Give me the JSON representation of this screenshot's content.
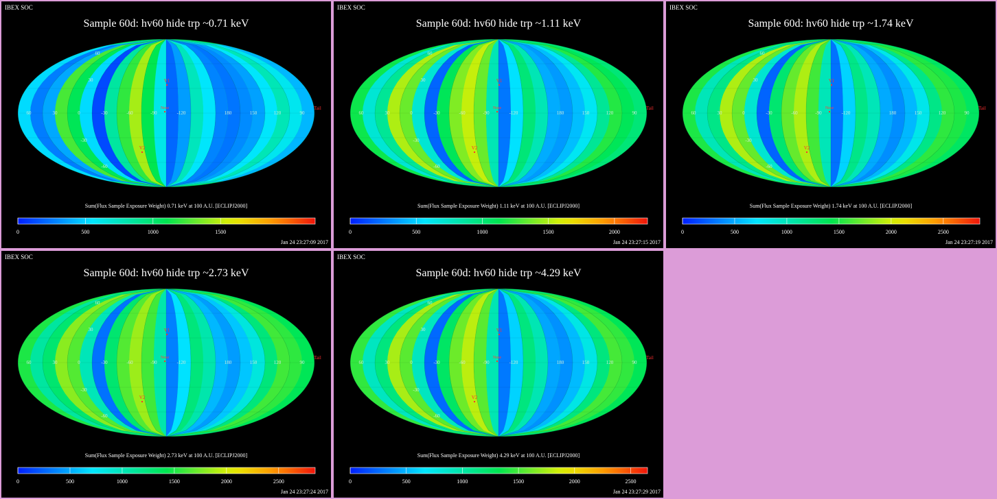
{
  "colors": {
    "background": "#dc9cd8",
    "panel": "#000000",
    "text": "#ffffff",
    "marker": "#ff3030"
  },
  "chart_data": [
    {
      "type": "heatmap",
      "projection": "mollweide",
      "corner_label": "IBEX SOC",
      "title": "Sample 60d: hv60 hide trp ~0.71 keV",
      "colorbar_label": "Sum(Flux Sample Exposure Weight)  0.71 keV at 100 A.U. [ECLIPJ2000]",
      "colorbar_ticks": [
        0,
        500,
        1000,
        1500
      ],
      "colorbar_range": [
        0,
        2200
      ],
      "timestamp": "Jan 24 23:27:09 2017",
      "lon_labels": [
        "60",
        "30",
        "0",
        "-30",
        "-60",
        "-90",
        "-120",
        "180",
        "150",
        "120",
        "90"
      ],
      "lat_labels": [
        "60",
        "30",
        "-30",
        "-60"
      ],
      "markers": [
        "V1",
        "V2",
        "Nose",
        "Tail"
      ],
      "band_values": [
        520,
        260,
        380,
        1250,
        1080,
        520,
        120,
        850,
        1200,
        1450,
        1100,
        620,
        200,
        350,
        760,
        560,
        280,
        240,
        300,
        360,
        560,
        780,
        600,
        420
      ]
    },
    {
      "type": "heatmap",
      "projection": "mollweide",
      "corner_label": "IBEX SOC",
      "title": "Sample 60d: hv60 hide trp ~1.11 keV",
      "colorbar_label": "Sum(Flux Sample Exposure Weight)  1.11 keV at 100 A.U. [ECLIPJ2000]",
      "colorbar_ticks": [
        0,
        500,
        1000,
        1500,
        2000
      ],
      "colorbar_range": [
        0,
        2250
      ],
      "timestamp": "Jan 24 23:27:15 2017",
      "lon_labels": [
        "60",
        "30",
        "0",
        "-30",
        "-60",
        "-90",
        "-120",
        "180",
        "150",
        "120",
        "90"
      ],
      "lat_labels": [
        "60",
        "30",
        "-30",
        "-60"
      ],
      "markers": [
        "V1",
        "V2",
        "Nose",
        "Tail"
      ],
      "band_values": [
        1150,
        700,
        900,
        1500,
        1350,
        700,
        200,
        1100,
        1400,
        1550,
        1350,
        800,
        250,
        550,
        1000,
        800,
        400,
        350,
        450,
        600,
        900,
        1200,
        1100,
        1000
      ]
    },
    {
      "type": "heatmap",
      "projection": "mollweide",
      "corner_label": "IBEX SOC",
      "title": "Sample 60d: hv60 hide trp ~1.74 keV",
      "colorbar_label": "Sum(Flux Sample Exposure Weight)  1.74 keV at 100 A.U. [ECLIPJ2000]",
      "colorbar_ticks": [
        0,
        500,
        1000,
        1500,
        2000,
        2500
      ],
      "colorbar_range": [
        0,
        2850
      ],
      "timestamp": "Jan 24 23:27:19 2017",
      "lon_labels": [
        "60",
        "30",
        "0",
        "-30",
        "-60",
        "-90",
        "-120",
        "180",
        "150",
        "120",
        "90"
      ],
      "lat_labels": [
        "60",
        "30",
        "-30",
        "-60"
      ],
      "markers": [
        "V1",
        "V2",
        "Nose",
        "Tail"
      ],
      "band_values": [
        1500,
        1000,
        1200,
        1900,
        1700,
        900,
        250,
        1300,
        1700,
        1900,
        1600,
        1000,
        300,
        650,
        1200,
        1000,
        500,
        400,
        550,
        800,
        1200,
        1550,
        1500,
        1350
      ]
    },
    {
      "type": "heatmap",
      "projection": "mollweide",
      "corner_label": "IBEX SOC",
      "title": "Sample 60d: hv60 hide trp ~2.73 keV",
      "colorbar_label": "Sum(Flux Sample Exposure Weight)  2.73 keV at 100 A.U. [ECLIPJ2000]",
      "colorbar_ticks": [
        0,
        500,
        1000,
        1500,
        2000,
        2500
      ],
      "colorbar_range": [
        0,
        2850
      ],
      "timestamp": "Jan 24 23:27:24 2017",
      "lon_labels": [
        "60",
        "30",
        "0",
        "-30",
        "-60",
        "-90",
        "-120",
        "180",
        "150",
        "120",
        "90"
      ],
      "lat_labels": [
        "60",
        "30",
        "-30",
        "-60"
      ],
      "markers": [
        "V1",
        "V2",
        "Nose",
        "Tail"
      ],
      "band_values": [
        1500,
        1100,
        1300,
        1800,
        1650,
        1000,
        300,
        1300,
        1650,
        1850,
        1600,
        1050,
        350,
        700,
        1250,
        1050,
        550,
        450,
        600,
        850,
        1250,
        1600,
        1550,
        1400
      ]
    },
    {
      "type": "heatmap",
      "projection": "mollweide",
      "corner_label": "IBEX SOC",
      "title": "Sample 60d: hv60 hide trp ~4.29 keV",
      "colorbar_label": "Sum(Flux Sample Exposure Weight)  4.29 keV at 100 A.U. [ECLIPJ2000]",
      "colorbar_ticks": [
        0,
        500,
        1000,
        1500,
        2000,
        2500
      ],
      "colorbar_range": [
        0,
        2650
      ],
      "timestamp": "Jan 24 23:27:29 2017",
      "lon_labels": [
        "60",
        "30",
        "0",
        "-30",
        "-60",
        "-90",
        "-120",
        "180",
        "150",
        "120",
        "90"
      ],
      "lat_labels": [
        "60",
        "30",
        "-30",
        "-60"
      ],
      "markers": [
        "V1",
        "V2",
        "Nose",
        "Tail"
      ],
      "band_values": [
        1450,
        900,
        1150,
        1750,
        1550,
        900,
        250,
        1250,
        1600,
        1800,
        1550,
        950,
        300,
        600,
        1150,
        950,
        450,
        380,
        520,
        760,
        1150,
        1500,
        1450,
        1300
      ]
    }
  ]
}
